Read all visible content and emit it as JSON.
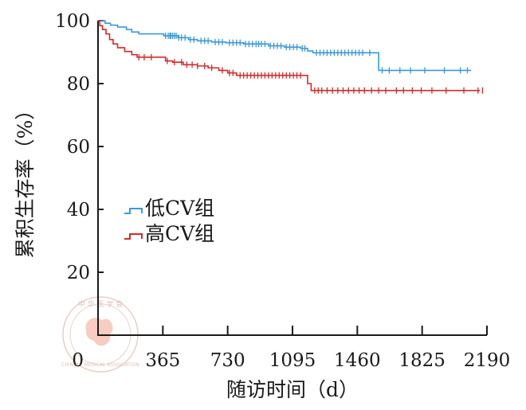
{
  "chart_data": {
    "type": "line",
    "subtype": "kaplan-meier",
    "title": "",
    "xlabel": "随访时间（d）",
    "ylabel": "累积生存率（%）",
    "xlim": [
      0,
      2190
    ],
    "ylim": [
      0,
      100
    ],
    "xticks": [
      0,
      365,
      730,
      1095,
      1460,
      1825,
      2190
    ],
    "yticks": [
      20,
      40,
      60,
      80,
      100
    ],
    "ytick_labels": [
      "20",
      "40",
      "60",
      "80",
      "100"
    ],
    "xtick_labels": [
      "0",
      "365",
      "730",
      "1095",
      "1460",
      "1825",
      "2190"
    ],
    "legend_position": "middle-left",
    "series": [
      {
        "name": "低CV组",
        "color": "#3a9ad9",
        "steps": [
          [
            0,
            100
          ],
          [
            40,
            99.2
          ],
          [
            70,
            98.6
          ],
          [
            110,
            98.0
          ],
          [
            160,
            97.2
          ],
          [
            190,
            96.4
          ],
          [
            230,
            95.8
          ],
          [
            330,
            95.8
          ],
          [
            370,
            95.2
          ],
          [
            450,
            94.6
          ],
          [
            510,
            94.0
          ],
          [
            560,
            93.6
          ],
          [
            640,
            93.2
          ],
          [
            720,
            93.0
          ],
          [
            820,
            92.6
          ],
          [
            960,
            92.0
          ],
          [
            1050,
            91.6
          ],
          [
            1140,
            91.2
          ],
          [
            1180,
            90.4
          ],
          [
            1210,
            89.8
          ],
          [
            1560,
            89.8
          ],
          [
            1580,
            84.2
          ],
          [
            2100,
            84.2
          ]
        ],
        "censored": [
          380,
          395,
          405,
          410,
          420,
          430,
          440,
          455,
          470,
          490,
          520,
          540,
          580,
          600,
          620,
          660,
          680,
          700,
          740,
          760,
          780,
          800,
          830,
          850,
          870,
          890,
          905,
          920,
          940,
          970,
          990,
          1010,
          1030,
          1060,
          1080,
          1100,
          1120,
          1150,
          1165,
          1230,
          1250,
          1270,
          1290,
          1310,
          1330,
          1350,
          1370,
          1390,
          1410,
          1430,
          1450,
          1470,
          1490,
          1530,
          1600,
          1640,
          1700,
          1760,
          1840,
          1950,
          2040,
          2080
        ]
      },
      {
        "name": "高CV组",
        "color": "#d42a2a",
        "steps": [
          [
            0,
            100
          ],
          [
            10,
            98.4
          ],
          [
            25,
            97.2
          ],
          [
            45,
            95.8
          ],
          [
            65,
            94.0
          ],
          [
            85,
            92.6
          ],
          [
            110,
            91.4
          ],
          [
            150,
            90.2
          ],
          [
            190,
            89.2
          ],
          [
            220,
            88.4
          ],
          [
            340,
            88.4
          ],
          [
            380,
            87.2
          ],
          [
            420,
            86.8
          ],
          [
            480,
            86.0
          ],
          [
            560,
            85.6
          ],
          [
            620,
            85.0
          ],
          [
            680,
            84.2
          ],
          [
            730,
            83.4
          ],
          [
            780,
            82.6
          ],
          [
            880,
            82.6
          ],
          [
            1170,
            82.6
          ],
          [
            1180,
            80.0
          ],
          [
            1200,
            77.8
          ],
          [
            2150,
            77.8
          ]
        ],
        "censored": [
          230,
          260,
          300,
          390,
          430,
          470,
          500,
          530,
          560,
          600,
          640,
          700,
          740,
          760,
          800,
          820,
          840,
          860,
          880,
          900,
          920,
          940,
          960,
          980,
          1000,
          1020,
          1040,
          1060,
          1080,
          1100,
          1120,
          1140,
          1220,
          1240,
          1260,
          1290,
          1320,
          1350,
          1380,
          1410,
          1440,
          1470,
          1500,
          1540,
          1580,
          1620,
          1680,
          1720,
          1770,
          1820,
          1880,
          1960,
          2060,
          2140,
          2165
        ]
      }
    ]
  },
  "watermark": {
    "text_top": "中 华 医 学 会",
    "text_bottom": "CHINESE MEDICAL ASSOCIATION"
  }
}
